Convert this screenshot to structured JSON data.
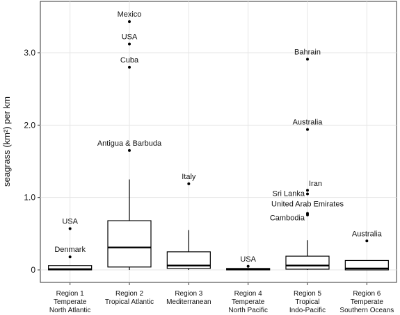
{
  "chart_data": {
    "type": "box",
    "title": "",
    "xlabel": "",
    "ylabel": "seagrass (km²) per km",
    "ylim": [
      -0.1,
      3.6
    ],
    "yticks": [
      0,
      1.0,
      2.0,
      3.0
    ],
    "ytick_labels": [
      "0",
      "1.0",
      "2.0",
      "3.0"
    ],
    "grid": true,
    "categories": [
      {
        "lines": [
          "Region 1",
          "Temperate",
          "North Atlantic"
        ]
      },
      {
        "lines": [
          "Region 2",
          "Tropical Atlantic"
        ]
      },
      {
        "lines": [
          "Region 3",
          "Mediterranean"
        ]
      },
      {
        "lines": [
          "Region 4",
          "Temperate",
          "North Pacific"
        ]
      },
      {
        "lines": [
          "Region 5",
          "Tropical",
          "Indo-Pacific"
        ]
      },
      {
        "lines": [
          "Region 6",
          "Temperate",
          "Southern Oceans"
        ]
      }
    ],
    "boxes": [
      {
        "q1": 0.0,
        "median": 0.01,
        "q3": 0.06,
        "whisker_low": 0.0,
        "whisker_high": 0.06,
        "outliers": [
          {
            "value": 0.57,
            "label": "USA"
          },
          {
            "value": 0.18,
            "label": "Denmark"
          }
        ]
      },
      {
        "q1": 0.04,
        "median": 0.31,
        "q3": 0.68,
        "whisker_low": 0.0,
        "whisker_high": 1.25,
        "outliers": [
          {
            "value": 3.43,
            "label": "Mexico"
          },
          {
            "value": 3.12,
            "label": "USA"
          },
          {
            "value": 2.8,
            "label": "Cuba"
          },
          {
            "value": 1.65,
            "label": "Antigua & Barbuda"
          }
        ]
      },
      {
        "q1": 0.02,
        "median": 0.06,
        "q3": 0.25,
        "whisker_low": 0.0,
        "whisker_high": 0.55,
        "outliers": [
          {
            "value": 1.19,
            "label": "Italy"
          }
        ]
      },
      {
        "q1": 0.0,
        "median": 0.01,
        "q3": 0.02,
        "whisker_low": 0.0,
        "whisker_high": 0.02,
        "outliers": [
          {
            "value": 0.05,
            "label": "USA"
          }
        ]
      },
      {
        "q1": 0.01,
        "median": 0.06,
        "q3": 0.19,
        "whisker_low": 0.0,
        "whisker_high": 0.41,
        "outliers": [
          {
            "value": 2.91,
            "label": "Bahrain"
          },
          {
            "value": 1.94,
            "label": "Australia"
          },
          {
            "value": 1.1,
            "label": "Iran"
          },
          {
            "value": 1.05,
            "label": "Sri Lanka"
          },
          {
            "value": 0.78,
            "label": "United Arab Emirates"
          },
          {
            "value": 0.76,
            "label": "Cambodia"
          }
        ]
      },
      {
        "q1": 0.0,
        "median": 0.02,
        "q3": 0.13,
        "whisker_low": 0.0,
        "whisker_high": 0.13,
        "outliers": [
          {
            "value": 0.4,
            "label": "Australia"
          }
        ]
      }
    ]
  }
}
